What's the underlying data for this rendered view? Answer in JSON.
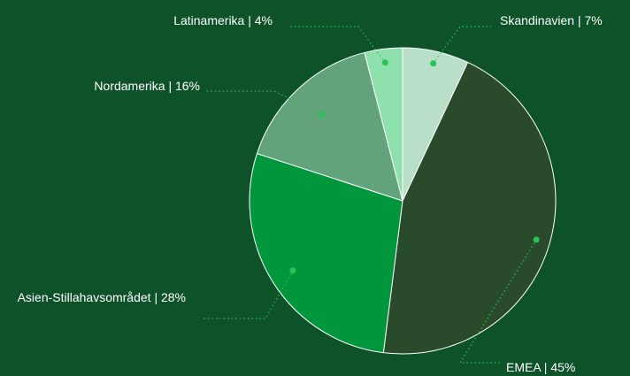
{
  "chart_data": {
    "type": "pie",
    "values": [
      7,
      45,
      28,
      16,
      4
    ],
    "value_labels": [
      "Skandinavien | 7%",
      "EMEA | 45%",
      "Asien-Stillahavsområdet | 28%",
      "Nordamerika | 16%",
      "Latinamerika | 4%"
    ],
    "colors": [
      "#b9dfc8",
      "#2a4a2c",
      "#00963c",
      "#62a37c",
      "#8ee0ad"
    ]
  }
}
